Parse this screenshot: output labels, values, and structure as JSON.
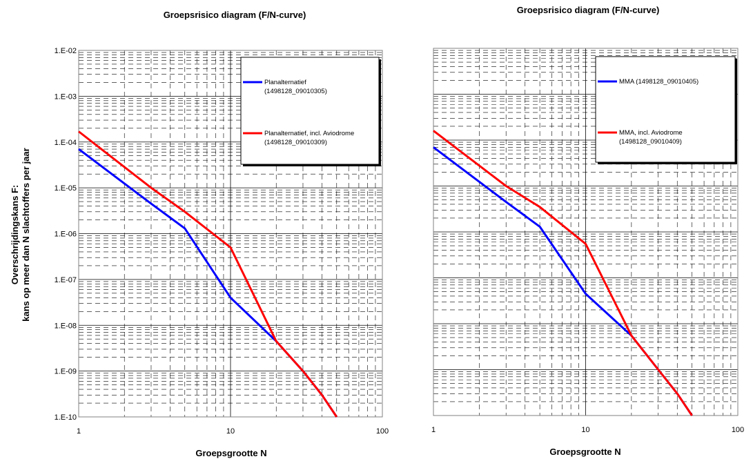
{
  "y_axis_label_line1": "Overschrijdingskans F:",
  "y_axis_label_line2": "kans op meer dan N slachtoffers per jaar",
  "chart_data": [
    {
      "type": "line",
      "title": "Groepsrisico diagram (F/N-curve)",
      "xlabel": "Groepsgrootte N",
      "x_scale": "log",
      "y_scale": "log",
      "xlim": [
        1,
        100
      ],
      "ylim": [
        1e-10,
        0.01
      ],
      "x_tick_labels": [
        "1",
        "10",
        "100"
      ],
      "y_tick_labels": [
        "1.E-02",
        "1.E-03",
        "1.E-04",
        "1.E-05",
        "1.E-06",
        "1.E-07",
        "1.E-08",
        "1.E-09",
        "1.E-10"
      ],
      "grid": true,
      "legend_position": "top-right",
      "series": [
        {
          "name": "Planalternatief",
          "name_line2": "(1498128_09010305)",
          "color": "#0000ff",
          "points": [
            [
              1,
              7e-05
            ],
            [
              3,
              4.5e-06
            ],
            [
              5,
              1.3e-06
            ],
            [
              10,
              4e-08
            ],
            [
              20,
              4.5e-09
            ],
            [
              30,
              1e-09
            ],
            [
              40,
              3e-10
            ],
            [
              50,
              1e-10
            ]
          ]
        },
        {
          "name": "Planalternatief, incl. Aviodrome",
          "name_line2": "(1498128_09010309)",
          "color": "#ff0000",
          "points": [
            [
              1,
              0.00017
            ],
            [
              3,
              1e-05
            ],
            [
              5,
              3e-06
            ],
            [
              10,
              5e-07
            ],
            [
              20,
              4.5e-09
            ],
            [
              30,
              1e-09
            ],
            [
              40,
              3e-10
            ],
            [
              50,
              1e-10
            ]
          ]
        }
      ]
    },
    {
      "type": "line",
      "title": "Groepsrisico diagram (F/N-curve)",
      "xlabel": "Groepsgrootte N",
      "x_scale": "log",
      "y_scale": "log",
      "xlim": [
        1,
        100
      ],
      "ylim": [
        1e-10,
        0.01
      ],
      "x_tick_labels": [
        "1",
        "10",
        "100"
      ],
      "grid": true,
      "legend_position": "top-right",
      "series": [
        {
          "name": "MMA (1498128_09010405)",
          "name_line2": "",
          "color": "#0000ff",
          "points": [
            [
              1,
              7e-05
            ],
            [
              3,
              4.5e-06
            ],
            [
              5,
              1.3e-06
            ],
            [
              10,
              4.5e-08
            ],
            [
              20,
              5.5e-09
            ],
            [
              30,
              1e-09
            ],
            [
              40,
              3e-10
            ],
            [
              50,
              1e-10
            ]
          ]
        },
        {
          "name": "MMA, incl. Aviodrome",
          "name_line2": "(1498128_09010409)",
          "color": "#ff0000",
          "points": [
            [
              1,
              0.00016
            ],
            [
              3,
              1e-05
            ],
            [
              5,
              3.5e-06
            ],
            [
              10,
              5.5e-07
            ],
            [
              20,
              5.5e-09
            ],
            [
              30,
              1e-09
            ],
            [
              40,
              3e-10
            ],
            [
              50,
              1e-10
            ]
          ]
        }
      ]
    }
  ]
}
